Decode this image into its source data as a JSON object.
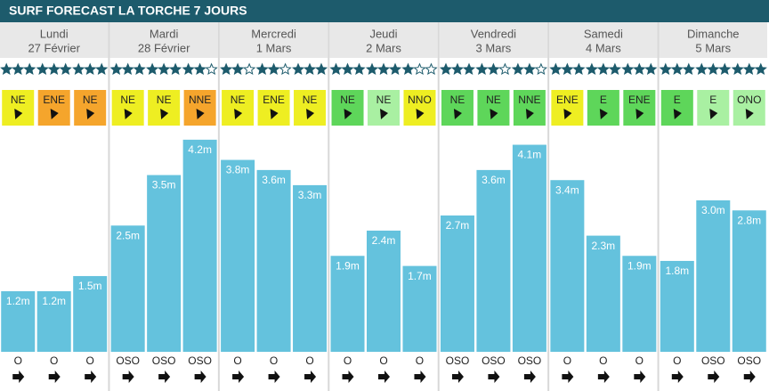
{
  "header": {
    "title": "SURF FORECAST LA TORCHE 7 JOURS"
  },
  "days": [
    {
      "name": "Lundi",
      "date": "27 Février",
      "periods": [
        {
          "stars": 3,
          "wind": "NE",
          "wind_color": "#eeee22",
          "height": 1.2,
          "height_label": "1.2m",
          "swell": "O"
        },
        {
          "stars": 3,
          "wind": "ENE",
          "wind_color": "#f5a52c",
          "height": 1.2,
          "height_label": "1.2m",
          "swell": "O"
        },
        {
          "stars": 3,
          "wind": "NE",
          "wind_color": "#f5a52c",
          "height": 1.5,
          "height_label": "1.5m",
          "swell": "O"
        }
      ]
    },
    {
      "name": "Mardi",
      "date": "28 Février",
      "periods": [
        {
          "stars": 3,
          "wind": "NE",
          "wind_color": "#eeee22",
          "height": 2.5,
          "height_label": "2.5m",
          "swell": "OSO"
        },
        {
          "stars": 3,
          "wind": "NE",
          "wind_color": "#eeee22",
          "height": 3.5,
          "height_label": "3.5m",
          "swell": "OSO"
        },
        {
          "stars": 2,
          "wind": "NNE",
          "wind_color": "#f5a52c",
          "height": 4.2,
          "height_label": "4.2m",
          "swell": "OSO"
        }
      ]
    },
    {
      "name": "Mercredi",
      "date": "1 Mars",
      "periods": [
        {
          "stars": 2,
          "wind": "NE",
          "wind_color": "#eeee22",
          "height": 3.8,
          "height_label": "3.8m",
          "swell": "O"
        },
        {
          "stars": 2,
          "wind": "ENE",
          "wind_color": "#eeee22",
          "height": 3.6,
          "height_label": "3.6m",
          "swell": "O"
        },
        {
          "stars": 3,
          "wind": "NE",
          "wind_color": "#eeee22",
          "height": 3.3,
          "height_label": "3.3m",
          "swell": "O"
        }
      ]
    },
    {
      "name": "Jeudi",
      "date": "2 Mars",
      "periods": [
        {
          "stars": 3,
          "wind": "NE",
          "wind_color": "#5ed65a",
          "height": 1.9,
          "height_label": "1.9m",
          "swell": "O"
        },
        {
          "stars": 3,
          "wind": "NE",
          "wind_color": "#a9f0a2",
          "height": 2.4,
          "height_label": "2.4m",
          "swell": "O"
        },
        {
          "stars": 1,
          "wind": "NNO",
          "wind_color": "#eeee22",
          "height": 1.7,
          "height_label": "1.7m",
          "swell": "O"
        }
      ]
    },
    {
      "name": "Vendredi",
      "date": "3 Mars",
      "periods": [
        {
          "stars": 3,
          "wind": "NE",
          "wind_color": "#5ed65a",
          "height": 2.7,
          "height_label": "2.7m",
          "swell": "OSO"
        },
        {
          "stars": 2,
          "wind": "NE",
          "wind_color": "#5ed65a",
          "height": 3.6,
          "height_label": "3.6m",
          "swell": "OSO"
        },
        {
          "stars": 2,
          "wind": "NNE",
          "wind_color": "#5ed65a",
          "height": 4.1,
          "height_label": "4.1m",
          "swell": "OSO"
        }
      ]
    },
    {
      "name": "Samedi",
      "date": "4 Mars",
      "periods": [
        {
          "stars": 3,
          "wind": "ENE",
          "wind_color": "#eeee22",
          "height": 3.4,
          "height_label": "3.4m",
          "swell": "O"
        },
        {
          "stars": 3,
          "wind": "E",
          "wind_color": "#5ed65a",
          "height": 2.3,
          "height_label": "2.3m",
          "swell": "O"
        },
        {
          "stars": 3,
          "wind": "ENE",
          "wind_color": "#5ed65a",
          "height": 1.9,
          "height_label": "1.9m",
          "swell": "O"
        }
      ]
    },
    {
      "name": "Dimanche",
      "date": "5 Mars",
      "periods": [
        {
          "stars": 3,
          "wind": "E",
          "wind_color": "#5ed65a",
          "height": 1.8,
          "height_label": "1.8m",
          "swell": "O"
        },
        {
          "stars": 3,
          "wind": "E",
          "wind_color": "#a9f0a2",
          "height": 3.0,
          "height_label": "3.0m",
          "swell": "OSO"
        },
        {
          "stars": 3,
          "wind": "ONO",
          "wind_color": "#a9f0a2",
          "height": 2.8,
          "height_label": "2.8m",
          "swell": "OSO"
        }
      ]
    }
  ]
}
